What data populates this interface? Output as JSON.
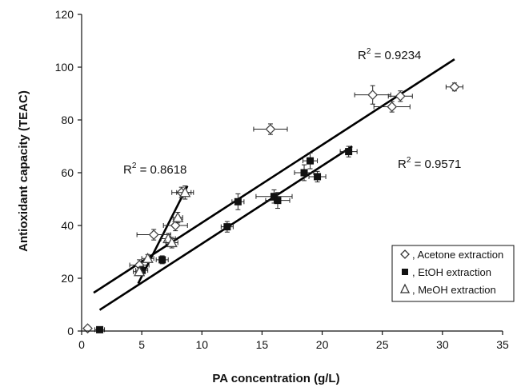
{
  "chart_data": {
    "type": "scatter",
    "title": "",
    "xlabel": "PA concentration (g/L)",
    "ylabel": "Antioxidant capacity (TEAC)",
    "xlim": [
      0,
      35
    ],
    "ylim": [
      0,
      120
    ],
    "x_ticks": [
      "0",
      "5",
      "10",
      "15",
      "20",
      "25",
      "30",
      "35"
    ],
    "y_ticks": [
      "0",
      "20",
      "40",
      "60",
      "80",
      "100",
      "120"
    ],
    "grid": false,
    "legend_position": "bottom-right",
    "series": [
      {
        "name": ", Acetone extraction",
        "marker": "diamond",
        "points": [
          {
            "x": 0.5,
            "y": 1,
            "xerr": 0,
            "yerr": 0
          },
          {
            "x": 4.8,
            "y": 25,
            "xerr": 0.8,
            "yerr": 2
          },
          {
            "x": 6.0,
            "y": 36.5,
            "xerr": 1.4,
            "yerr": 2
          },
          {
            "x": 7.8,
            "y": 40,
            "xerr": 1.0,
            "yerr": 2
          },
          {
            "x": 8.3,
            "y": 52.5,
            "xerr": 0.8,
            "yerr": 2
          },
          {
            "x": 15.7,
            "y": 76.5,
            "xerr": 1.4,
            "yerr": 2
          },
          {
            "x": 24.2,
            "y": 89.5,
            "xerr": 1.5,
            "yerr": 3.5
          },
          {
            "x": 25.8,
            "y": 85,
            "xerr": 1.5,
            "yerr": 2
          },
          {
            "x": 26.5,
            "y": 89,
            "xerr": 1.0,
            "yerr": 2
          },
          {
            "x": 31.0,
            "y": 92.5,
            "xerr": 0.7,
            "yerr": 1.5
          }
        ]
      },
      {
        "name": ", EtOH extraction",
        "marker": "square",
        "points": [
          {
            "x": 1.5,
            "y": 0.5,
            "xerr": 0.4,
            "yerr": 0
          },
          {
            "x": 5.0,
            "y": 23,
            "xerr": 0.5,
            "yerr": 1.5
          },
          {
            "x": 6.7,
            "y": 27,
            "xerr": 0.5,
            "yerr": 1.5
          },
          {
            "x": 12.1,
            "y": 39.5,
            "xerr": 0.5,
            "yerr": 2
          },
          {
            "x": 13.0,
            "y": 49,
            "xerr": 0.5,
            "yerr": 3
          },
          {
            "x": 16.0,
            "y": 51,
            "xerr": 1.5,
            "yerr": 2.5
          },
          {
            "x": 16.3,
            "y": 49.5,
            "xerr": 1.0,
            "yerr": 3
          },
          {
            "x": 18.5,
            "y": 60,
            "xerr": 0.8,
            "yerr": 3
          },
          {
            "x": 19.0,
            "y": 64.5,
            "xerr": 0.6,
            "yerr": 3
          },
          {
            "x": 19.6,
            "y": 58.5,
            "xerr": 0.7,
            "yerr": 2
          },
          {
            "x": 22.2,
            "y": 68,
            "xerr": 0.7,
            "yerr": 2
          }
        ]
      },
      {
        "name": ", MeOH extraction",
        "marker": "triangle",
        "points": [
          {
            "x": 4.8,
            "y": 22.5,
            "xerr": 0.5,
            "yerr": 1.5
          },
          {
            "x": 5.5,
            "y": 27.5,
            "xerr": 0.5,
            "yerr": 1.5
          },
          {
            "x": 7.2,
            "y": 35,
            "xerr": 0.6,
            "yerr": 2
          },
          {
            "x": 7.5,
            "y": 33.5,
            "xerr": 0.5,
            "yerr": 2
          },
          {
            "x": 8.0,
            "y": 43,
            "xerr": 0.4,
            "yerr": 2
          },
          {
            "x": 8.6,
            "y": 52.5,
            "xerr": 0.7,
            "yerr": 2.5
          }
        ]
      }
    ],
    "trendlines": [
      {
        "label": "R² = 0.9234",
        "x0": 1.0,
        "y0": 14.5,
        "x1": 31.0,
        "y1": 103
      },
      {
        "label": "R² = 0.8618",
        "x0": 4.7,
        "y0": 18,
        "x1": 8.8,
        "y1": 55
      },
      {
        "label": "R² = 0.9571",
        "x0": 1.5,
        "y0": 8,
        "x1": 22.5,
        "y1": 70
      }
    ]
  }
}
